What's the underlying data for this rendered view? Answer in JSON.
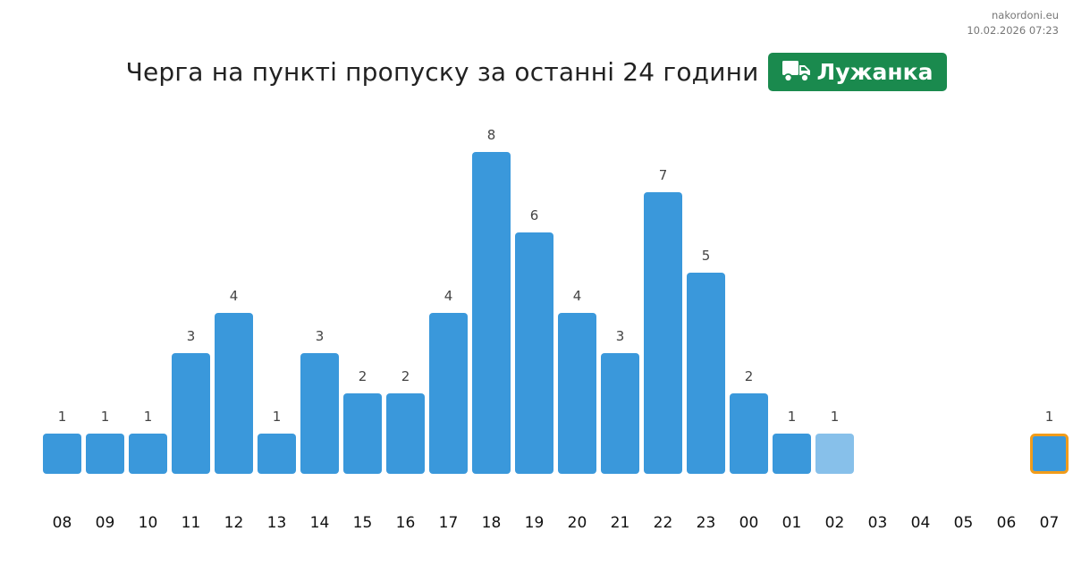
{
  "source": {
    "site": "nakordoni.eu",
    "timestamp": "10.02.2026 07:23"
  },
  "header": {
    "title": "Черга на пункті пропуску за останні 24 години",
    "checkpoint_name": "Лужанка",
    "checkpoint_icon": "truck-icon"
  },
  "colors": {
    "bar": "#3a98db",
    "bar_partial": "#87c0ea",
    "bar_current_outline": "#f19c1b",
    "badge": "#1a8a4e"
  },
  "chart_data": {
    "type": "bar",
    "title": "Черга на пункті пропуску за останні 24 години",
    "xlabel": "",
    "ylabel": "",
    "grid": false,
    "categories": [
      "08",
      "09",
      "10",
      "11",
      "12",
      "13",
      "14",
      "15",
      "16",
      "17",
      "18",
      "19",
      "20",
      "21",
      "22",
      "23",
      "00",
      "01",
      "02",
      "03",
      "04",
      "05",
      "06",
      "07"
    ],
    "values": [
      1,
      1,
      1,
      3,
      4,
      1,
      3,
      2,
      2,
      4,
      8,
      6,
      4,
      3,
      7,
      5,
      2,
      1,
      1,
      null,
      null,
      null,
      null,
      1
    ],
    "partial_category": "02",
    "current_category": "07"
  }
}
